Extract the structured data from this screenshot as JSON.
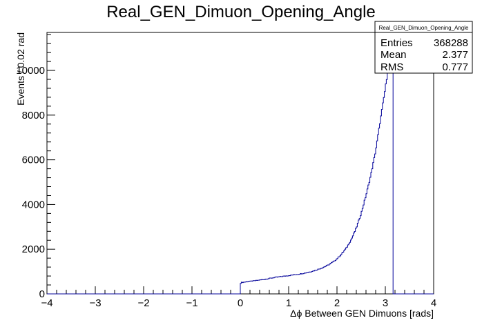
{
  "chart_data": {
    "type": "histogram",
    "title": "Real_GEN_Dimuon_Opening_Angle",
    "xlabel": "Δϕ Between GEN Dimuons [rads]",
    "ylabel": "Events / 0.02 rad",
    "xlim": [
      -4,
      4
    ],
    "ylim": [
      0,
      11700
    ],
    "x_ticks": [
      -4,
      -3,
      -2,
      -1,
      0,
      1,
      2,
      3,
      4
    ],
    "x_tick_labels": [
      "−4",
      "−3",
      "−2",
      "−1",
      "0",
      "1",
      "2",
      "3",
      "4"
    ],
    "y_ticks": [
      0,
      2000,
      4000,
      6000,
      8000,
      10000
    ],
    "y_tick_labels": [
      "0",
      "2000",
      "4000",
      "6000",
      "8000",
      "10000"
    ],
    "bin_width": 0.02,
    "curve_points": [
      [
        0.0,
        460
      ],
      [
        0.02,
        510
      ],
      [
        0.06,
        520
      ],
      [
        0.1,
        530
      ],
      [
        0.2,
        560
      ],
      [
        0.3,
        590
      ],
      [
        0.4,
        620
      ],
      [
        0.5,
        650
      ],
      [
        0.6,
        690
      ],
      [
        0.7,
        730
      ],
      [
        0.8,
        760
      ],
      [
        0.9,
        790
      ],
      [
        1.0,
        820
      ],
      [
        1.1,
        850
      ],
      [
        1.2,
        880
      ],
      [
        1.3,
        920
      ],
      [
        1.4,
        960
      ],
      [
        1.5,
        1020
      ],
      [
        1.6,
        1090
      ],
      [
        1.7,
        1170
      ],
      [
        1.8,
        1270
      ],
      [
        1.9,
        1400
      ],
      [
        2.0,
        1570
      ],
      [
        2.1,
        1790
      ],
      [
        2.2,
        2070
      ],
      [
        2.3,
        2450
      ],
      [
        2.4,
        2950
      ],
      [
        2.5,
        3600
      ],
      [
        2.6,
        4400
      ],
      [
        2.7,
        5300
      ],
      [
        2.8,
        6400
      ],
      [
        2.9,
        7800
      ],
      [
        3.0,
        9200
      ],
      [
        3.05,
        9950
      ],
      [
        3.1,
        10800
      ],
      [
        3.12,
        11000
      ],
      [
        3.14,
        11300
      ]
    ],
    "x_upper_edge": 3.16,
    "grid": false,
    "legend": "top-right",
    "stats": {
      "name": "Real_GEN_Dimuon_Opening_Angle",
      "rows": [
        {
          "label": "Entries",
          "value": "368288"
        },
        {
          "label": "Mean",
          "value": "2.377"
        },
        {
          "label": "RMS",
          "value": "0.777"
        }
      ]
    },
    "colors": {
      "line": "#000099",
      "axis": "#000000",
      "background": "#ffffff"
    }
  }
}
